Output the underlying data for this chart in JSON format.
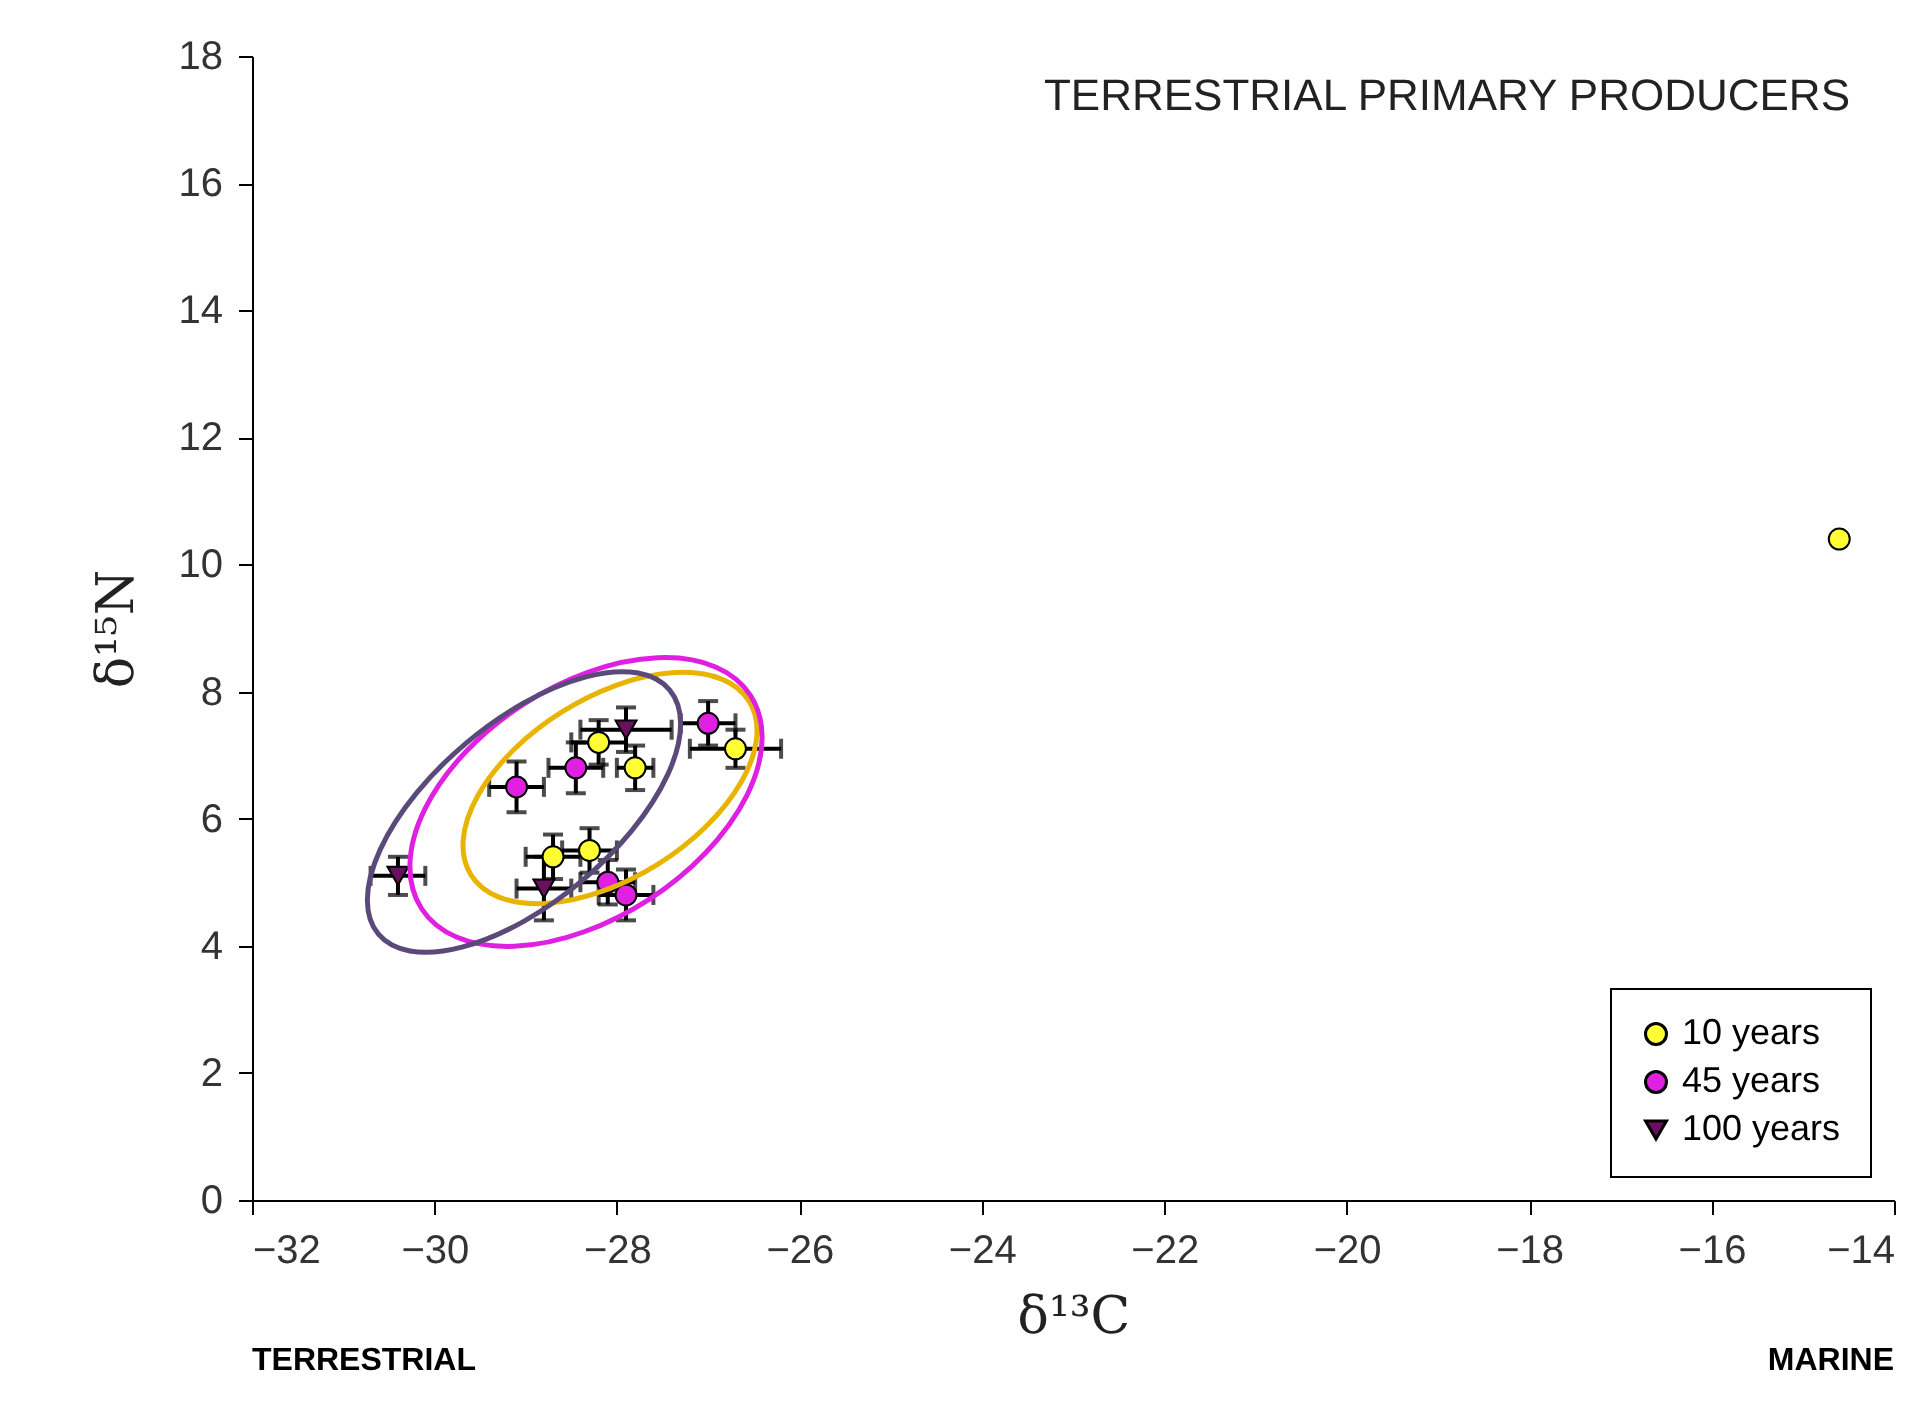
{
  "chart_data": {
    "type": "scatter",
    "xlabel": "δ¹³C",
    "ylabel": "δ¹⁵N",
    "annotations": [
      "TERRESTRIAL PRIMARY PRODUCERS",
      "TERRESTRIAL",
      "MARINE"
    ],
    "xlim": [
      -32,
      -14
    ],
    "ylim": [
      0,
      18
    ],
    "xticks": [
      -32,
      -30,
      -28,
      -26,
      -24,
      -22,
      -20,
      -18,
      -16,
      -14
    ],
    "yticks": [
      0,
      2,
      4,
      6,
      8,
      10,
      12,
      14,
      16,
      18
    ],
    "grid": false,
    "legend": "bottom right",
    "series": [
      {
        "name": "10 years",
        "type": "scatter",
        "marker": "circle",
        "color": "#ffff33",
        "x": [
          -14.6,
          -28.2,
          -27.8,
          -26.7,
          -28.7,
          -28.3
        ],
        "values": [
          10.4,
          7.2,
          6.8,
          7.1,
          5.4,
          5.5
        ],
        "errors": [
          null,
          0.35,
          0.35,
          0.3,
          0.35,
          0.35
        ],
        "xerrors": [
          null,
          0.3,
          0.2,
          0.5,
          0.3,
          0.3
        ]
      },
      {
        "name": "45 years",
        "type": "scatter",
        "marker": "circle",
        "color": "#e020e0",
        "x": [
          -29.1,
          -28.45,
          -27.0,
          -28.1,
          -27.9
        ],
        "values": [
          6.5,
          6.8,
          7.5,
          5.0,
          4.8
        ],
        "errors": [
          0.4,
          0.4,
          0.35,
          0.35,
          0.4
        ],
        "xerrors": [
          0.3,
          0.3,
          0.3,
          0.3,
          0.3
        ]
      },
      {
        "name": "100 years",
        "type": "scatter",
        "marker": "triangle",
        "color": "#6a1060",
        "x": [
          -30.4,
          -27.9,
          -28.8
        ],
        "values": [
          5.1,
          7.4,
          4.9
        ],
        "errors": [
          0.3,
          0.35,
          0.5
        ],
        "xerrors": [
          0.3,
          0.5,
          0.3
        ]
      }
    ]
  }
}
